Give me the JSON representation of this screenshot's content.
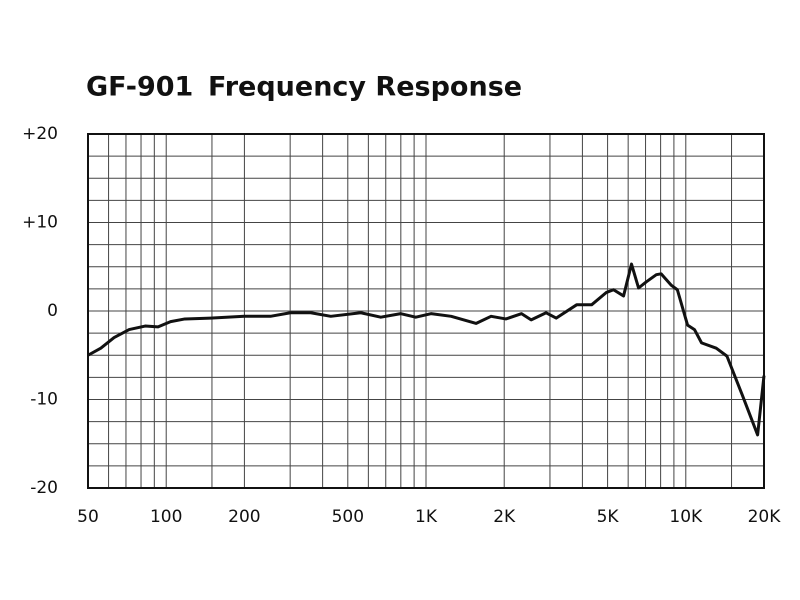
{
  "chart_data": {
    "type": "line",
    "model": "GF-901",
    "title": "Frequency Response",
    "xscale": "log",
    "xlim": [
      50,
      20000
    ],
    "ylim": [
      -20,
      20
    ],
    "xticks": [
      50,
      100,
      200,
      500,
      {
        "value": 1000,
        "label": "1K"
      },
      {
        "value": 2000,
        "label": "2K"
      },
      {
        "value": 5000,
        "label": "5K"
      },
      {
        "value": 10000,
        "label": "10K"
      },
      {
        "value": 20000,
        "label": "20K"
      }
    ],
    "xminor": [
      60,
      70,
      80,
      90,
      150,
      300,
      400,
      600,
      700,
      800,
      900,
      3000,
      4000,
      6000,
      7000,
      8000,
      9000,
      15000
    ],
    "yticks": [
      {
        "value": 20,
        "label": "+20"
      },
      {
        "value": 10,
        "label": "+10"
      },
      0,
      -10,
      -20
    ],
    "yminor": [
      17.5,
      15,
      12.5,
      7.5,
      5,
      2.5,
      -2.5,
      -5,
      -7.5,
      -12.5,
      -15,
      -17.5
    ],
    "grid": true,
    "color": "#111111",
    "x": [
      50,
      56,
      63,
      72,
      83,
      93,
      104,
      118,
      148,
      200,
      252,
      301,
      360,
      430,
      561,
      670,
      800,
      913,
      1045,
      1250,
      1560,
      1780,
      2030,
      2330,
      2540,
      2900,
      3170,
      3800,
      4340,
      4950,
      5270,
      5760,
      6180,
      6580,
      7050,
      7700,
      8040,
      8800,
      9280,
      10160,
      10800,
      11500,
      13100,
      14400,
      16500,
      18900,
      20000
    ],
    "values": [
      -5.0,
      -4.2,
      -3.0,
      -2.1,
      -1.7,
      -1.8,
      -1.2,
      -0.9,
      -0.8,
      -0.6,
      -0.6,
      -0.2,
      -0.2,
      -0.6,
      -0.2,
      -0.7,
      -0.3,
      -0.7,
      -0.3,
      -0.6,
      -1.4,
      -0.6,
      -0.9,
      -0.3,
      -1.0,
      -0.2,
      -0.8,
      0.7,
      0.7,
      2.1,
      2.4,
      1.7,
      5.3,
      2.6,
      3.3,
      4.1,
      4.2,
      2.9,
      2.4,
      -1.6,
      -2.1,
      -3.6,
      -4.2,
      -5.1,
      -9.5,
      -14.0,
      -7.3
    ]
  }
}
